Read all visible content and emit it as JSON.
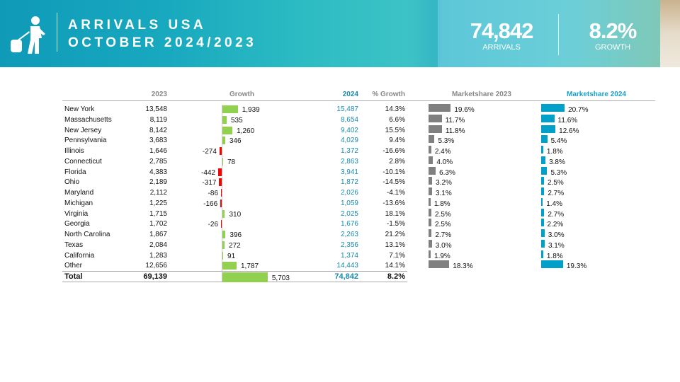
{
  "header": {
    "title_line1": "ARRIVALS USA",
    "title_line2": "OCTOBER 2024/2023",
    "kpi_arrivals_value": "74,842",
    "kpi_arrivals_label": "ARRIVALS",
    "kpi_growth_value": "8.2%",
    "kpi_growth_label": "GROWTH",
    "icon": "traveler-with-luggage-icon"
  },
  "colors": {
    "positive": "#92d050",
    "negative": "#ff0000",
    "share2023": "#808080",
    "share2024": "#00a0c8",
    "accent": "#1a8aad"
  },
  "chart_data": {
    "type": "table",
    "columns": [
      "",
      "2023",
      "Growth",
      "2024",
      "% Growth",
      "Marketshare 2023",
      "Marketshare 2024"
    ],
    "rows": [
      {
        "state": "New York",
        "y2023": "13,548",
        "growth": 1939,
        "growth_label": "1,939",
        "y2024": "15,487",
        "pct": "14.3%",
        "ms2023": 19.6,
        "ms2024": 20.7
      },
      {
        "state": "Massachusetts",
        "y2023": "8,119",
        "growth": 535,
        "growth_label": "535",
        "y2024": "8,654",
        "pct": "6.6%",
        "ms2023": 11.7,
        "ms2024": 11.6
      },
      {
        "state": "New Jersey",
        "y2023": "8,142",
        "growth": 1260,
        "growth_label": "1,260",
        "y2024": "9,402",
        "pct": "15.5%",
        "ms2023": 11.8,
        "ms2024": 12.6
      },
      {
        "state": "Pennsylvania",
        "y2023": "3,683",
        "growth": 346,
        "growth_label": "346",
        "y2024": "4,029",
        "pct": "9.4%",
        "ms2023": 5.3,
        "ms2024": 5.4
      },
      {
        "state": "Illinois",
        "y2023": "1,646",
        "growth": -274,
        "growth_label": "-274",
        "y2024": "1,372",
        "pct": "-16.6%",
        "ms2023": 2.4,
        "ms2024": 1.8
      },
      {
        "state": "Connecticut",
        "y2023": "2,785",
        "growth": 78,
        "growth_label": "78",
        "y2024": "2,863",
        "pct": "2.8%",
        "ms2023": 4.0,
        "ms2024": 3.8
      },
      {
        "state": "Florida",
        "y2023": "4,383",
        "growth": -442,
        "growth_label": "-442",
        "y2024": "3,941",
        "pct": "-10.1%",
        "ms2023": 6.3,
        "ms2024": 5.3
      },
      {
        "state": "Ohio",
        "y2023": "2,189",
        "growth": -317,
        "growth_label": "-317",
        "y2024": "1,872",
        "pct": "-14.5%",
        "ms2023": 3.2,
        "ms2024": 2.5
      },
      {
        "state": "Maryland",
        "y2023": "2,112",
        "growth": -86,
        "growth_label": "-86",
        "y2024": "2,026",
        "pct": "-4.1%",
        "ms2023": 3.1,
        "ms2024": 2.7
      },
      {
        "state": "Michigan",
        "y2023": "1,225",
        "growth": -166,
        "growth_label": "-166",
        "y2024": "1,059",
        "pct": "-13.6%",
        "ms2023": 1.8,
        "ms2024": 1.4
      },
      {
        "state": "Virginia",
        "y2023": "1,715",
        "growth": 310,
        "growth_label": "310",
        "y2024": "2,025",
        "pct": "18.1%",
        "ms2023": 2.5,
        "ms2024": 2.7
      },
      {
        "state": "Georgia",
        "y2023": "1,702",
        "growth": -26,
        "growth_label": "-26",
        "y2024": "1,676",
        "pct": "-1.5%",
        "ms2023": 2.5,
        "ms2024": 2.2
      },
      {
        "state": "North Carolina",
        "y2023": "1,867",
        "growth": 396,
        "growth_label": "396",
        "y2024": "2,263",
        "pct": "21.2%",
        "ms2023": 2.7,
        "ms2024": 3.0
      },
      {
        "state": "Texas",
        "y2023": "2,084",
        "growth": 272,
        "growth_label": "272",
        "y2024": "2,356",
        "pct": "13.1%",
        "ms2023": 3.0,
        "ms2024": 3.1
      },
      {
        "state": "California",
        "y2023": "1,283",
        "growth": 91,
        "growth_label": "91",
        "y2024": "1,374",
        "pct": "7.1%",
        "ms2023": 1.9,
        "ms2024": 1.8
      },
      {
        "state": "Other",
        "y2023": "12,656",
        "growth": 1787,
        "growth_label": "1,787",
        "y2024": "14,443",
        "pct": "14.1%",
        "ms2023": 18.3,
        "ms2024": 19.3
      }
    ],
    "total": {
      "state": "Total",
      "y2023": "69,139",
      "growth": 5703,
      "growth_label": "5,703",
      "y2024": "74,842",
      "pct": "8.2%"
    }
  }
}
